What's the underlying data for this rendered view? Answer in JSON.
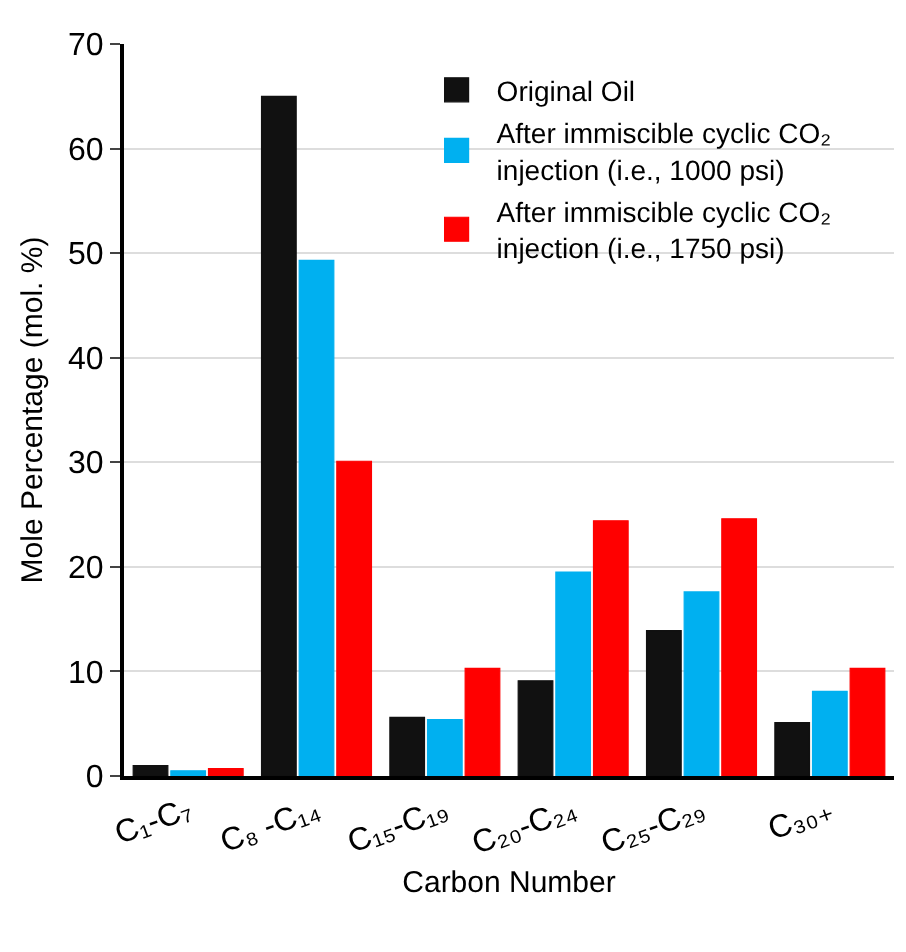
{
  "chart_data": {
    "type": "bar",
    "xlabel": "Carbon Number",
    "ylabel": "Mole Percentage (mol. %)",
    "categories": [
      "C₁-C₇",
      "C₈ -C₁₄",
      "C₁₅-C₁₉",
      "C₂₀-C₂₄",
      "C₂₅-C₂₉",
      "C₃₀₊"
    ],
    "series": [
      {
        "name": "Original Oil",
        "color": "#111111",
        "values": [
          1,
          65,
          5.6,
          9.1,
          13.9,
          5.1
        ]
      },
      {
        "name": "After immiscible cyclic CO₂ injection (i.e., 1000 psi)",
        "color": "#00b0f0",
        "values": [
          0.5,
          49.3,
          5.4,
          19.5,
          17.6,
          8.1
        ]
      },
      {
        "name": "After immiscible cyclic CO₂ injection (i.e., 1750 psi)",
        "color": "#ff0000",
        "values": [
          0.7,
          30.1,
          10.3,
          24.4,
          24.6,
          10.3
        ]
      }
    ],
    "ylim": [
      0,
      70
    ],
    "yticks": [
      0,
      10,
      20,
      30,
      40,
      50,
      60,
      70
    ],
    "grid": "y",
    "legend": "top right"
  }
}
